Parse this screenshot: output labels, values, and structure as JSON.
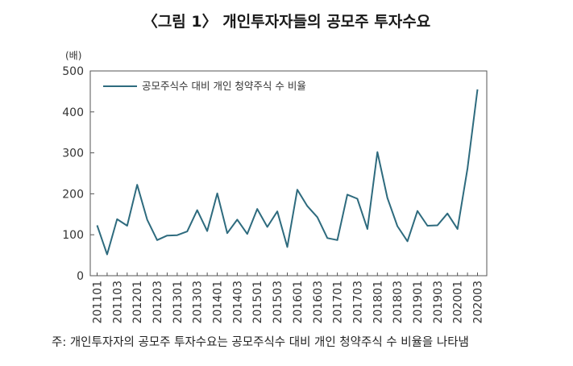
{
  "chart_data": {
    "type": "line",
    "title": "〈그림 1〉 개인투자자들의 공모주 투자수요",
    "ylabel": "(배)",
    "xlabel": "",
    "ylim": [
      0,
      500
    ],
    "yticks": [
      0,
      100,
      200,
      300,
      400,
      500
    ],
    "grid": false,
    "legend_position": "top-left",
    "x": [
      "201101",
      "201102",
      "201103",
      "201104",
      "201201",
      "201202",
      "201203",
      "201204",
      "201301",
      "201302",
      "201303",
      "201304",
      "201401",
      "201402",
      "201403",
      "201404",
      "201501",
      "201502",
      "201503",
      "201504",
      "201601",
      "201602",
      "201603",
      "201604",
      "201701",
      "201702",
      "201703",
      "201704",
      "201801",
      "201802",
      "201803",
      "201804",
      "201901",
      "201902",
      "201903",
      "201904",
      "202001",
      "202002",
      "202003"
    ],
    "x_tick_labels": [
      "201101",
      "201103",
      "201201",
      "201203",
      "201301",
      "201303",
      "201401",
      "201403",
      "201501",
      "201503",
      "201601",
      "201603",
      "201701",
      "201703",
      "201801",
      "201803",
      "201901",
      "201903",
      "202001",
      "202003"
    ],
    "series": [
      {
        "name": "공모주식수 대비 개인 청약주식 수 비율",
        "color": "#2e6b7e",
        "values": [
          123,
          52,
          138,
          122,
          222,
          137,
          87,
          98,
          99,
          108,
          160,
          109,
          201,
          104,
          137,
          102,
          163,
          119,
          157,
          70,
          210,
          170,
          143,
          92,
          87,
          198,
          188,
          114,
          302,
          190,
          121,
          84,
          158,
          122,
          123,
          152,
          114,
          262,
          455
        ]
      }
    ],
    "note": "주: 개인투자자의 공모주 투자수요는 공모주식수 대비 개인 청약주식 수 비율을 나타냄"
  }
}
